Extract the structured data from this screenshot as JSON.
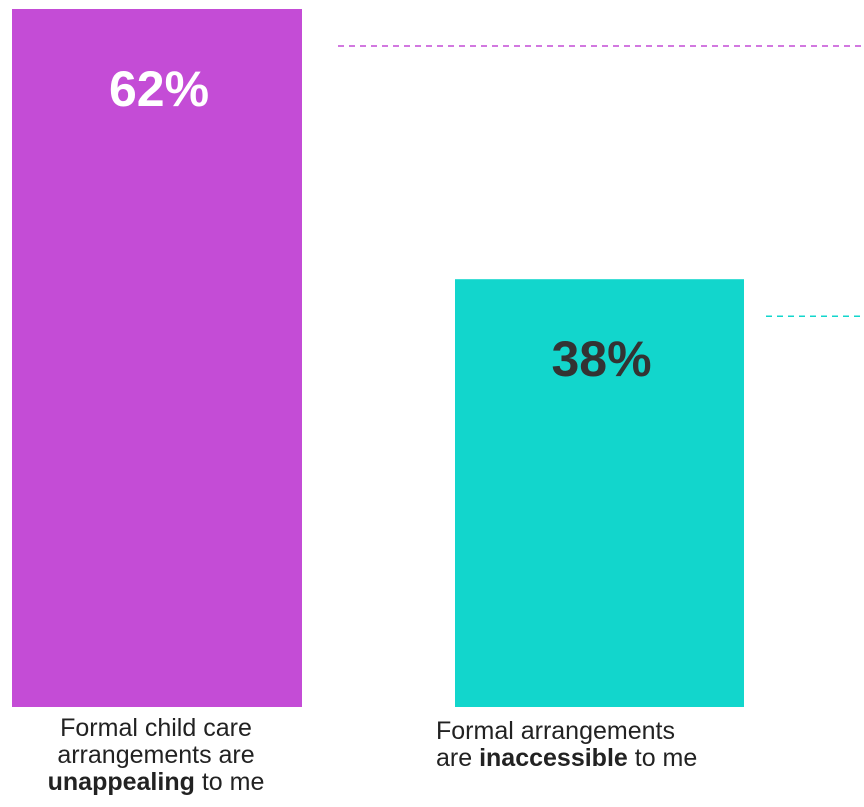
{
  "chart_data": {
    "type": "bar",
    "categories": [
      "Formal child care arrangements are unappealing to me",
      "Formal arrangements are inaccessible to me"
    ],
    "values": [
      62,
      38
    ],
    "value_labels": [
      "62%",
      "38%"
    ],
    "ylim": [
      0,
      62
    ],
    "title": "",
    "xlabel": "",
    "ylabel": "",
    "grid": false,
    "legend": "none",
    "colors": [
      "#c44cd6",
      "#12d6cc"
    ],
    "label_colors": [
      "#ffffff",
      "#333333"
    ],
    "category_lines": [
      [
        {
          "parts": [
            {
              "text": "Formal child care",
              "bold": false
            }
          ]
        },
        {
          "parts": [
            {
              "text": "arrangements are",
              "bold": false
            }
          ]
        },
        {
          "parts": [
            {
              "text": "unappealing",
              "bold": true
            },
            {
              "text": " to me",
              "bold": false
            }
          ]
        }
      ],
      [
        {
          "parts": [
            {
              "text": "Formal arrangements",
              "bold": false
            }
          ]
        },
        {
          "parts": [
            {
              "text": "are ",
              "bold": false
            },
            {
              "text": "inaccessible",
              "bold": true
            },
            {
              "text": " to me",
              "bold": false
            }
          ]
        }
      ]
    ]
  }
}
